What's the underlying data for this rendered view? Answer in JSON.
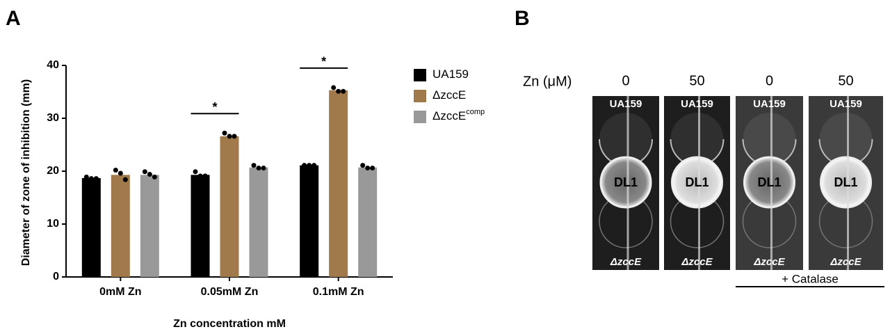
{
  "chart_data": {
    "type": "bar",
    "panel_label": "A",
    "ylabel": "Diameter of zone of inhibition (mm)",
    "xlabel": "Zn concentration mM",
    "categories": [
      "0mM Zn",
      "0.05mM Zn",
      "0.1mM Zn"
    ],
    "series": [
      {
        "name": "UA159",
        "color": "#000000",
        "values": [
          18.7,
          19.3,
          21.1
        ],
        "points": [
          [
            18.9,
            18.6,
            18.6
          ],
          [
            19.9,
            19.1,
            19.1
          ],
          [
            21.1,
            21.1,
            21.1
          ]
        ]
      },
      {
        "name": "ΔzccE",
        "color": "#a07a4a",
        "values": [
          19.3,
          26.6,
          35.3
        ],
        "points": [
          [
            20.2,
            19.6,
            18.4
          ],
          [
            27.2,
            26.6,
            26.6
          ],
          [
            35.8,
            35.1,
            35.1
          ]
        ]
      },
      {
        "name": "ΔzccE",
        "name_superscript": "comp",
        "color": "#999999",
        "values": [
          19.3,
          20.7,
          20.7
        ],
        "points": [
          [
            19.9,
            19.4,
            18.9
          ],
          [
            21.1,
            20.6,
            20.6
          ],
          [
            21.1,
            20.6,
            20.6
          ]
        ]
      }
    ],
    "ylim": [
      0,
      40
    ],
    "yticks": [
      0,
      10,
      20,
      30,
      40
    ],
    "significance": [
      {
        "label": "*",
        "category": 1,
        "series": [
          0,
          1
        ]
      },
      {
        "label": "*",
        "category": 2,
        "series": [
          0,
          1
        ]
      }
    ]
  },
  "panel_b": {
    "panel_label": "B",
    "row_label": "Zn (μM)",
    "columns": [
      {
        "zn": 0,
        "top": "UA159",
        "center": "DL1",
        "bottom": "ΔzccE"
      },
      {
        "zn": 50,
        "top": "UA159",
        "center": "DL1",
        "bottom": "ΔzccE"
      },
      {
        "zn": 0,
        "top": "UA159",
        "center": "DL1",
        "bottom": "ΔzccE"
      },
      {
        "zn": 50,
        "top": "UA159",
        "center": "DL1",
        "bottom": "ΔzccE"
      }
    ],
    "treatment": "+ Catalase"
  }
}
